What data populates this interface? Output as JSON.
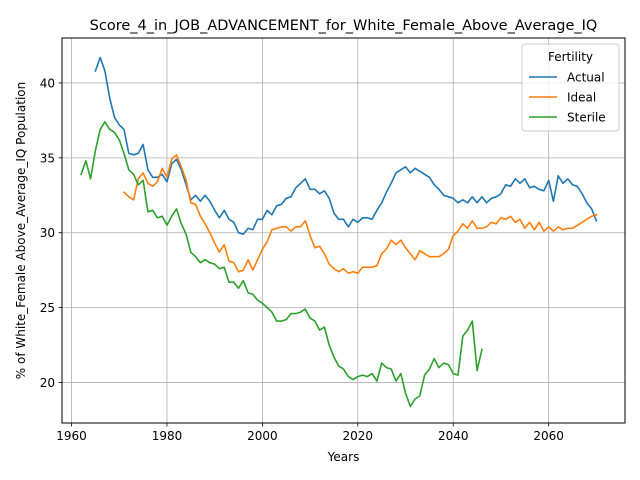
{
  "chart_data": {
    "type": "line",
    "title": "Score_4_in_JOB_ADVANCEMENT_for_White_Female_Above_Average_IQ",
    "xlabel": "Years",
    "ylabel": "% of White_Female Above_Average_IQ Population",
    "xlim": [
      1958,
      2076
    ],
    "ylim": [
      17.3,
      43.0
    ],
    "xticks": [
      1960,
      1980,
      2000,
      2020,
      2040,
      2060
    ],
    "yticks": [
      20,
      25,
      30,
      35,
      40
    ],
    "grid": true,
    "legend": {
      "title": "Fertility",
      "placement": "upper right"
    },
    "series": [
      {
        "name": "Actual",
        "color": "#1f77b4",
        "x": [
          1965,
          1966,
          1967,
          1968,
          1969,
          1970,
          1971,
          1972,
          1973,
          1974,
          1975,
          1976,
          1977,
          1978,
          1979,
          1980,
          1981,
          1982,
          1983,
          1984,
          1985,
          1986,
          1987,
          1988,
          1989,
          1990,
          1991,
          1992,
          1993,
          1994,
          1995,
          1996,
          1997,
          1998,
          1999,
          2000,
          2001,
          2002,
          2003,
          2004,
          2005,
          2006,
          2007,
          2008,
          2009,
          2010,
          2011,
          2012,
          2013,
          2014,
          2015,
          2016,
          2017,
          2018,
          2019,
          2020,
          2021,
          2022,
          2023,
          2024,
          2025,
          2026,
          2027,
          2028,
          2029,
          2030,
          2031,
          2032,
          2033,
          2034,
          2035,
          2036,
          2037,
          2038,
          2039,
          2040,
          2041,
          2042,
          2043,
          2044,
          2045,
          2046,
          2047,
          2048,
          2049,
          2050,
          2051,
          2052,
          2053,
          2054,
          2055,
          2056,
          2057,
          2058,
          2059,
          2060,
          2061,
          2062,
          2063,
          2064,
          2065,
          2066,
          2067,
          2068,
          2069,
          2070
        ],
        "y": [
          40.8,
          41.7,
          40.8,
          39.0,
          37.7,
          37.2,
          36.9,
          35.3,
          35.2,
          35.3,
          35.9,
          34.2,
          33.7,
          33.7,
          33.9,
          33.4,
          34.6,
          34.9,
          34.2,
          33.2,
          32.2,
          32.5,
          32.1,
          32.5,
          32.1,
          31.5,
          31.0,
          31.5,
          30.9,
          30.7,
          30.0,
          29.9,
          30.3,
          30.2,
          30.9,
          30.9,
          31.5,
          31.2,
          31.8,
          31.9,
          32.3,
          32.4,
          33.0,
          33.3,
          33.6,
          32.9,
          32.9,
          32.6,
          32.8,
          32.3,
          31.3,
          30.9,
          30.9,
          30.4,
          30.9,
          30.7,
          31.0,
          31.0,
          30.9,
          31.5,
          32.0,
          32.7,
          33.3,
          34.0,
          34.2,
          34.4,
          34.0,
          34.3,
          34.1,
          33.9,
          33.7,
          33.2,
          32.9,
          32.5,
          32.4,
          32.3,
          32.0,
          32.2,
          32.0,
          32.4,
          32.0,
          32.4,
          32.0,
          32.3,
          32.4,
          32.6,
          33.2,
          33.1,
          33.6,
          33.3,
          33.6,
          33.0,
          33.1,
          32.9,
          32.8,
          33.5,
          32.1,
          33.8,
          33.3,
          33.6,
          33.2,
          33.1,
          32.6,
          32.0,
          31.6,
          30.8
        ]
      },
      {
        "name": "Ideal",
        "color": "#ff7f0e",
        "x": [
          1971,
          1972,
          1973,
          1974,
          1975,
          1976,
          1977,
          1978,
          1979,
          1980,
          1981,
          1982,
          1983,
          1984,
          1985,
          1986,
          1987,
          1988,
          1989,
          1990,
          1991,
          1992,
          1993,
          1994,
          1995,
          1996,
          1997,
          1998,
          1999,
          2000,
          2001,
          2002,
          2003,
          2004,
          2005,
          2006,
          2007,
          2008,
          2009,
          2010,
          2011,
          2012,
          2013,
          2014,
          2015,
          2016,
          2017,
          2018,
          2019,
          2020,
          2021,
          2022,
          2023,
          2024,
          2025,
          2026,
          2027,
          2028,
          2029,
          2030,
          2031,
          2032,
          2033,
          2034,
          2035,
          2036,
          2037,
          2038,
          2039,
          2040,
          2041,
          2042,
          2043,
          2044,
          2045,
          2046,
          2047,
          2048,
          2049,
          2050,
          2051,
          2052,
          2053,
          2054,
          2055,
          2056,
          2057,
          2058,
          2059,
          2060,
          2061,
          2062,
          2063,
          2064,
          2065,
          2066,
          2067,
          2068,
          2069,
          2070
        ],
        "y": [
          32.7,
          32.4,
          32.2,
          33.6,
          34.0,
          33.3,
          33.1,
          33.4,
          34.3,
          33.7,
          34.9,
          35.2,
          34.4,
          33.5,
          32.0,
          31.9,
          31.1,
          30.6,
          30.0,
          29.3,
          28.7,
          29.2,
          28.1,
          28.0,
          27.4,
          27.5,
          28.2,
          27.5,
          28.2,
          28.9,
          29.4,
          30.2,
          30.3,
          30.4,
          30.4,
          30.1,
          30.4,
          30.4,
          30.8,
          29.8,
          29.0,
          29.1,
          28.6,
          27.9,
          27.6,
          27.4,
          27.6,
          27.3,
          27.4,
          27.3,
          27.7,
          27.7,
          27.7,
          27.8,
          28.6,
          28.9,
          29.5,
          29.2,
          29.5,
          29.0,
          28.6,
          28.2,
          28.8,
          28.6,
          28.4,
          28.4,
          28.4,
          28.6,
          28.9,
          29.8,
          30.1,
          30.6,
          30.3,
          30.8,
          30.3,
          30.3,
          30.4,
          30.7,
          30.6,
          31.0,
          30.9,
          31.1,
          30.7,
          30.9,
          30.3,
          30.7,
          30.2,
          30.7,
          30.1,
          30.4,
          30.1,
          30.4,
          30.2,
          30.3,
          30.3,
          30.5,
          30.7,
          30.9,
          31.1,
          31.2
        ]
      },
      {
        "name": "Sterile",
        "color": "#2ca02c",
        "x": [
          1962,
          1963,
          1964,
          1965,
          1966,
          1967,
          1968,
          1969,
          1970,
          1971,
          1972,
          1973,
          1974,
          1975,
          1976,
          1977,
          1978,
          1979,
          1980,
          1981,
          1982,
          1983,
          1984,
          1985,
          1986,
          1987,
          1988,
          1989,
          1990,
          1991,
          1992,
          1993,
          1994,
          1995,
          1996,
          1997,
          1998,
          1999,
          2000,
          2001,
          2002,
          2003,
          2004,
          2005,
          2006,
          2007,
          2008,
          2009,
          2010,
          2011,
          2012,
          2013,
          2014,
          2015,
          2016,
          2017,
          2018,
          2019,
          2020,
          2021,
          2022,
          2023,
          2024,
          2025,
          2026,
          2027,
          2028,
          2029,
          2030,
          2031,
          2032,
          2033,
          2034,
          2035,
          2036,
          2037,
          2038,
          2039,
          2040,
          2041,
          2042,
          2043,
          2044,
          2045,
          2046
        ],
        "y": [
          33.9,
          34.8,
          33.6,
          35.5,
          36.9,
          37.4,
          36.9,
          36.7,
          36.2,
          35.3,
          34.2,
          33.9,
          33.2,
          33.5,
          31.4,
          31.5,
          31.0,
          31.1,
          30.5,
          31.1,
          31.6,
          30.6,
          29.9,
          28.7,
          28.4,
          28.0,
          28.2,
          28.0,
          27.9,
          27.6,
          27.7,
          26.7,
          26.7,
          26.3,
          26.8,
          26.0,
          25.9,
          25.5,
          25.3,
          25.0,
          24.7,
          24.1,
          24.1,
          24.2,
          24.6,
          24.6,
          24.7,
          24.9,
          24.3,
          24.1,
          23.5,
          23.7,
          22.5,
          21.7,
          21.1,
          20.9,
          20.4,
          20.2,
          20.4,
          20.5,
          20.4,
          20.6,
          20.1,
          21.3,
          21.0,
          20.9,
          20.1,
          20.6,
          19.3,
          18.4,
          18.9,
          19.1,
          20.5,
          20.9,
          21.6,
          21.0,
          21.3,
          21.2,
          20.6,
          20.5,
          23.1,
          23.5,
          24.1,
          20.8,
          22.2
        ]
      }
    ]
  }
}
